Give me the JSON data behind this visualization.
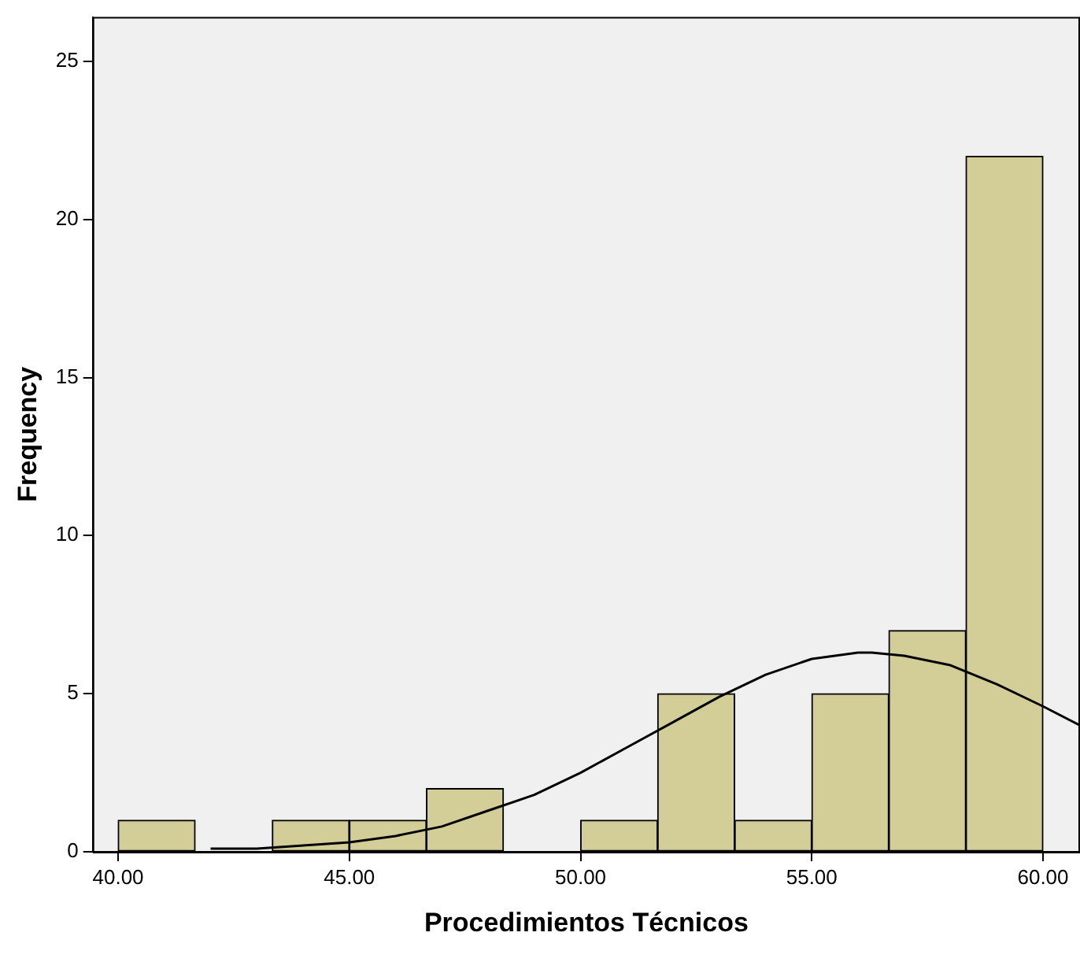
{
  "chart_data": {
    "type": "histogram",
    "xlabel": "Procedimientos Técnicos",
    "ylabel": "Frequency",
    "bins": [
      40,
      41.667,
      43.333,
      45,
      46.667,
      48.333,
      50,
      51.667,
      53.333,
      55,
      56.667,
      58.333,
      60
    ],
    "values": [
      1,
      0,
      1,
      1,
      2,
      0,
      1,
      5,
      1,
      5,
      7,
      22
    ],
    "color": "#d3ce98",
    "series": [
      {
        "type": "line",
        "color": "#000000",
        "x": [
          42,
          43,
          44,
          45,
          46,
          47,
          48,
          49,
          50,
          51,
          52,
          53,
          54,
          55,
          56,
          56.3,
          57,
          58,
          59,
          60,
          60.8
        ],
        "values": [
          0.1,
          0.1,
          0.2,
          0.3,
          0.5,
          0.8,
          1.3,
          1.8,
          2.5,
          3.3,
          4.1,
          4.9,
          5.6,
          6.1,
          6.3,
          6.3,
          6.2,
          5.9,
          5.3,
          4.6,
          4
        ]
      }
    ],
    "xlim": [
      39.45,
      60.8
    ],
    "ylim": [
      0,
      26.4
    ],
    "xticks": [
      {
        "value": 40,
        "label": "40.00"
      },
      {
        "value": 45,
        "label": "45.00"
      },
      {
        "value": 50,
        "label": "50.00"
      },
      {
        "value": 55,
        "label": "55.00"
      },
      {
        "value": 60,
        "label": "60.00"
      }
    ],
    "yticks": [
      0,
      5,
      10,
      15,
      20,
      25
    ],
    "grid": false,
    "legend": false,
    "marker": "none",
    "line_style": "solid"
  }
}
